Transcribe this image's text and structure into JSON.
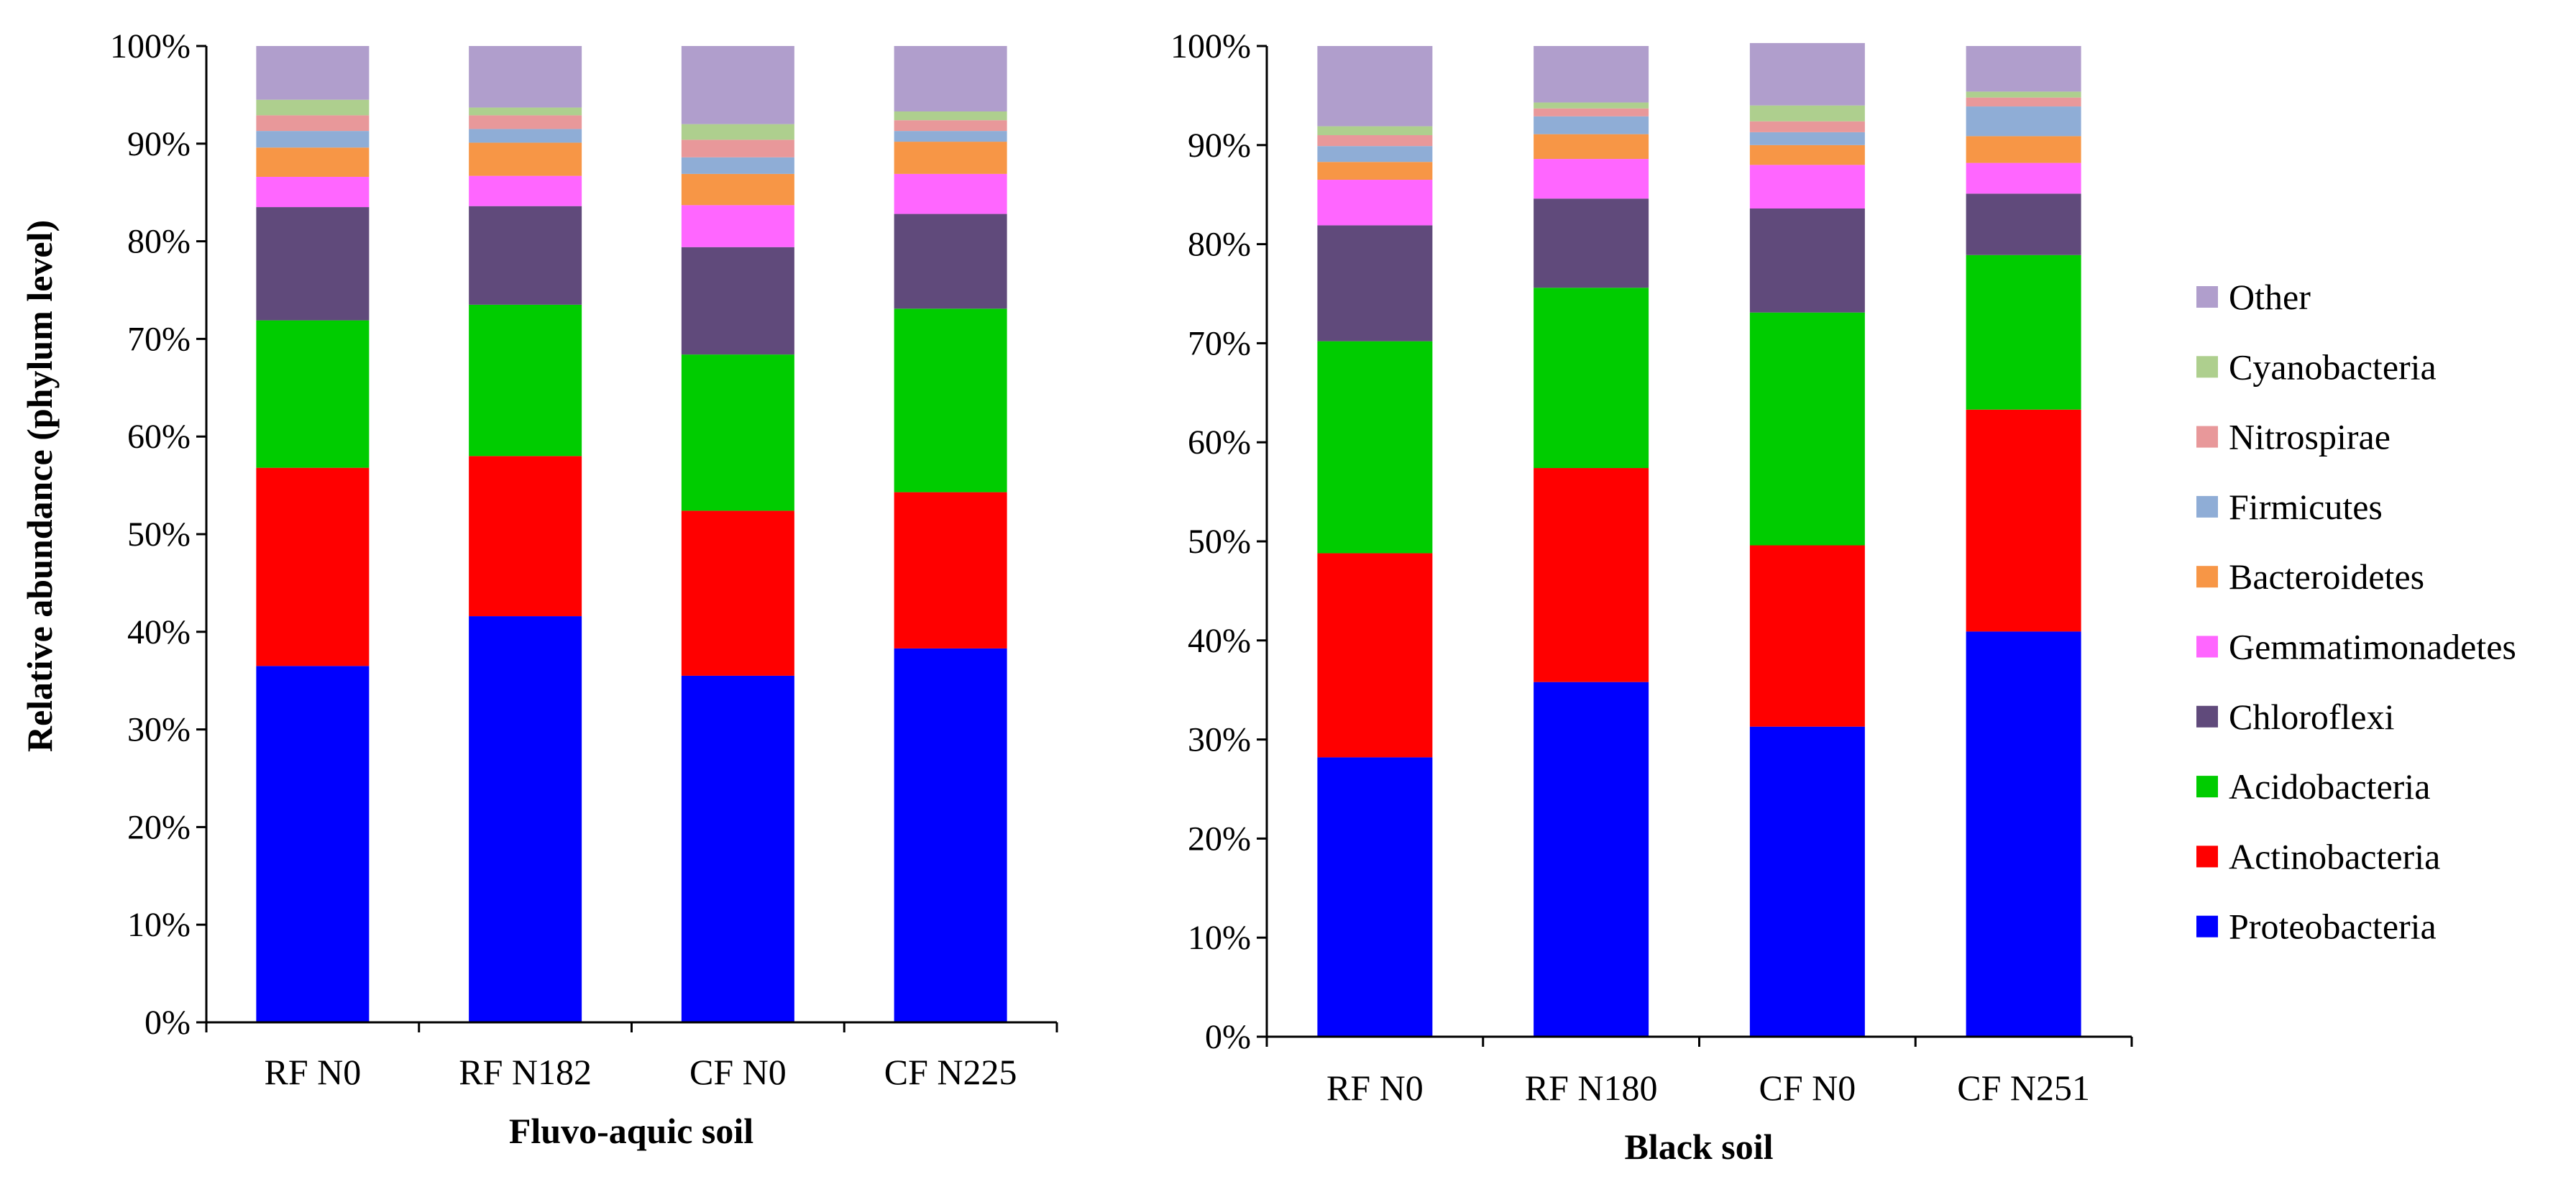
{
  "y_axis_title": "Relative abundance (phylum level)",
  "legend": [
    {
      "name": "Other",
      "color": "#B09ECC"
    },
    {
      "name": "Cyanobacteria",
      "color": "#AECF8E"
    },
    {
      "name": "Nitrospirae",
      "color": "#E8989A"
    },
    {
      "name": "Firmicutes",
      "color": "#8FADD6"
    },
    {
      "name": "Bacteroidetes",
      "color": "#F79646"
    },
    {
      "name": "Gemmatimonadetes",
      "color": "#FF66FF"
    },
    {
      "name": "Chloroflexi",
      "color": "#604A7B"
    },
    {
      "name": "Acidobacteria",
      "color": "#00CC00"
    },
    {
      "name": "Actinobacteria",
      "color": "#FF0000"
    },
    {
      "name": "Proteobacteria",
      "color": "#0000FF"
    }
  ],
  "chart_data": [
    {
      "type": "bar",
      "stacked": true,
      "title": "Fluvo-aquic soil",
      "xlabel": "Fluvo-aquic soil",
      "ylabel": "Relative abundance (phylum level)",
      "ylim": [
        0,
        100
      ],
      "yticks": [
        "0%",
        "10%",
        "20%",
        "30%",
        "40%",
        "50%",
        "60%",
        "70%",
        "80%",
        "90%",
        "100%"
      ],
      "categories": [
        "RF N0",
        "RF N182",
        "CF N0",
        "CF N225"
      ],
      "series": [
        {
          "name": "Proteobacteria",
          "values": [
            36.5,
            41.6,
            35.5,
            38.3
          ]
        },
        {
          "name": "Actinobacteria",
          "values": [
            20.3,
            16.4,
            16.9,
            16.0
          ]
        },
        {
          "name": "Acidobacteria",
          "values": [
            15.1,
            15.5,
            16.0,
            18.8
          ]
        },
        {
          "name": "Chloroflexi",
          "values": [
            11.6,
            10.1,
            11.0,
            9.7
          ]
        },
        {
          "name": "Gemmatimonadetes",
          "values": [
            3.1,
            3.1,
            4.3,
            4.1
          ]
        },
        {
          "name": "Bacteroidetes",
          "values": [
            3.0,
            3.4,
            3.2,
            3.3
          ]
        },
        {
          "name": "Firmicutes",
          "values": [
            1.7,
            1.4,
            1.7,
            1.1
          ]
        },
        {
          "name": "Nitrospirae",
          "values": [
            1.6,
            1.4,
            1.8,
            1.1
          ]
        },
        {
          "name": "Cyanobacteria",
          "values": [
            1.6,
            0.8,
            1.6,
            0.9
          ]
        },
        {
          "name": "Other",
          "values": [
            5.5,
            6.3,
            8.0,
            6.7
          ]
        }
      ]
    },
    {
      "type": "bar",
      "stacked": true,
      "title": "Black soil",
      "xlabel": "Black soil",
      "ylabel": "",
      "ylim": [
        0,
        100
      ],
      "yticks": [
        "0%",
        "10%",
        "20%",
        "30%",
        "40%",
        "50%",
        "60%",
        "70%",
        "80%",
        "90%",
        "100%"
      ],
      "categories": [
        "RF N0",
        "RF N180",
        "CF N0",
        "CF N251"
      ],
      "series": [
        {
          "name": "Proteobacteria",
          "values": [
            28.2,
            35.8,
            31.3,
            40.9
          ]
        },
        {
          "name": "Actinobacteria",
          "values": [
            20.6,
            21.6,
            18.3,
            22.4
          ]
        },
        {
          "name": "Acidobacteria",
          "values": [
            21.4,
            18.2,
            23.5,
            15.6
          ]
        },
        {
          "name": "Chloroflexi",
          "values": [
            11.7,
            9.0,
            10.5,
            6.2
          ]
        },
        {
          "name": "Gemmatimonadetes",
          "values": [
            4.6,
            4.0,
            4.4,
            3.1
          ]
        },
        {
          "name": "Bacteroidetes",
          "values": [
            1.8,
            2.5,
            2.0,
            2.7
          ]
        },
        {
          "name": "Firmicutes",
          "values": [
            1.6,
            1.8,
            1.3,
            3.0
          ]
        },
        {
          "name": "Nitrospirae",
          "values": [
            1.1,
            0.8,
            1.1,
            0.9
          ]
        },
        {
          "name": "Cyanobacteria",
          "values": [
            0.9,
            0.6,
            1.6,
            0.6
          ]
        },
        {
          "name": "Other",
          "values": [
            8.1,
            5.7,
            6.3,
            4.6
          ]
        }
      ]
    }
  ]
}
